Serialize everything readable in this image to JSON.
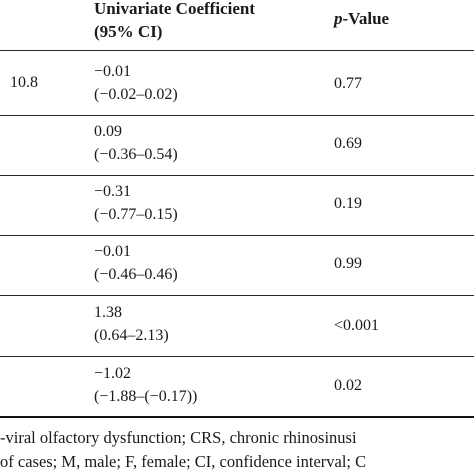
{
  "header": {
    "coef_line1": "Univariate Coefficient",
    "coef_line2": "(95% CI)",
    "p_italic": "p",
    "p_rest": "-Value"
  },
  "rows": [
    {
      "left": "10.8",
      "coef": "−0.01",
      "ci": "(−0.02–0.02)",
      "p": "0.77"
    },
    {
      "left": "",
      "coef": "0.09",
      "ci": "(−0.36–0.54)",
      "p": "0.69"
    },
    {
      "left": "",
      "coef": "−0.31",
      "ci": "(−0.77–0.15)",
      "p": "0.19"
    },
    {
      "left": "",
      "coef": "−0.01",
      "ci": "(−0.46–0.46)",
      "p": "0.99"
    },
    {
      "left": "",
      "coef": "1.38",
      "ci": "(0.64–2.13)",
      "p": "<0.001"
    },
    {
      "left": "",
      "coef": "−1.02",
      "ci": "(−1.88–(−0.17))",
      "p": "0.02"
    }
  ],
  "footnote": {
    "line1": "-viral olfactory dysfunction; CRS, chronic rhinosinusi",
    "line2": "of cases; M, male; F, female; CI, confidence interval; C"
  }
}
